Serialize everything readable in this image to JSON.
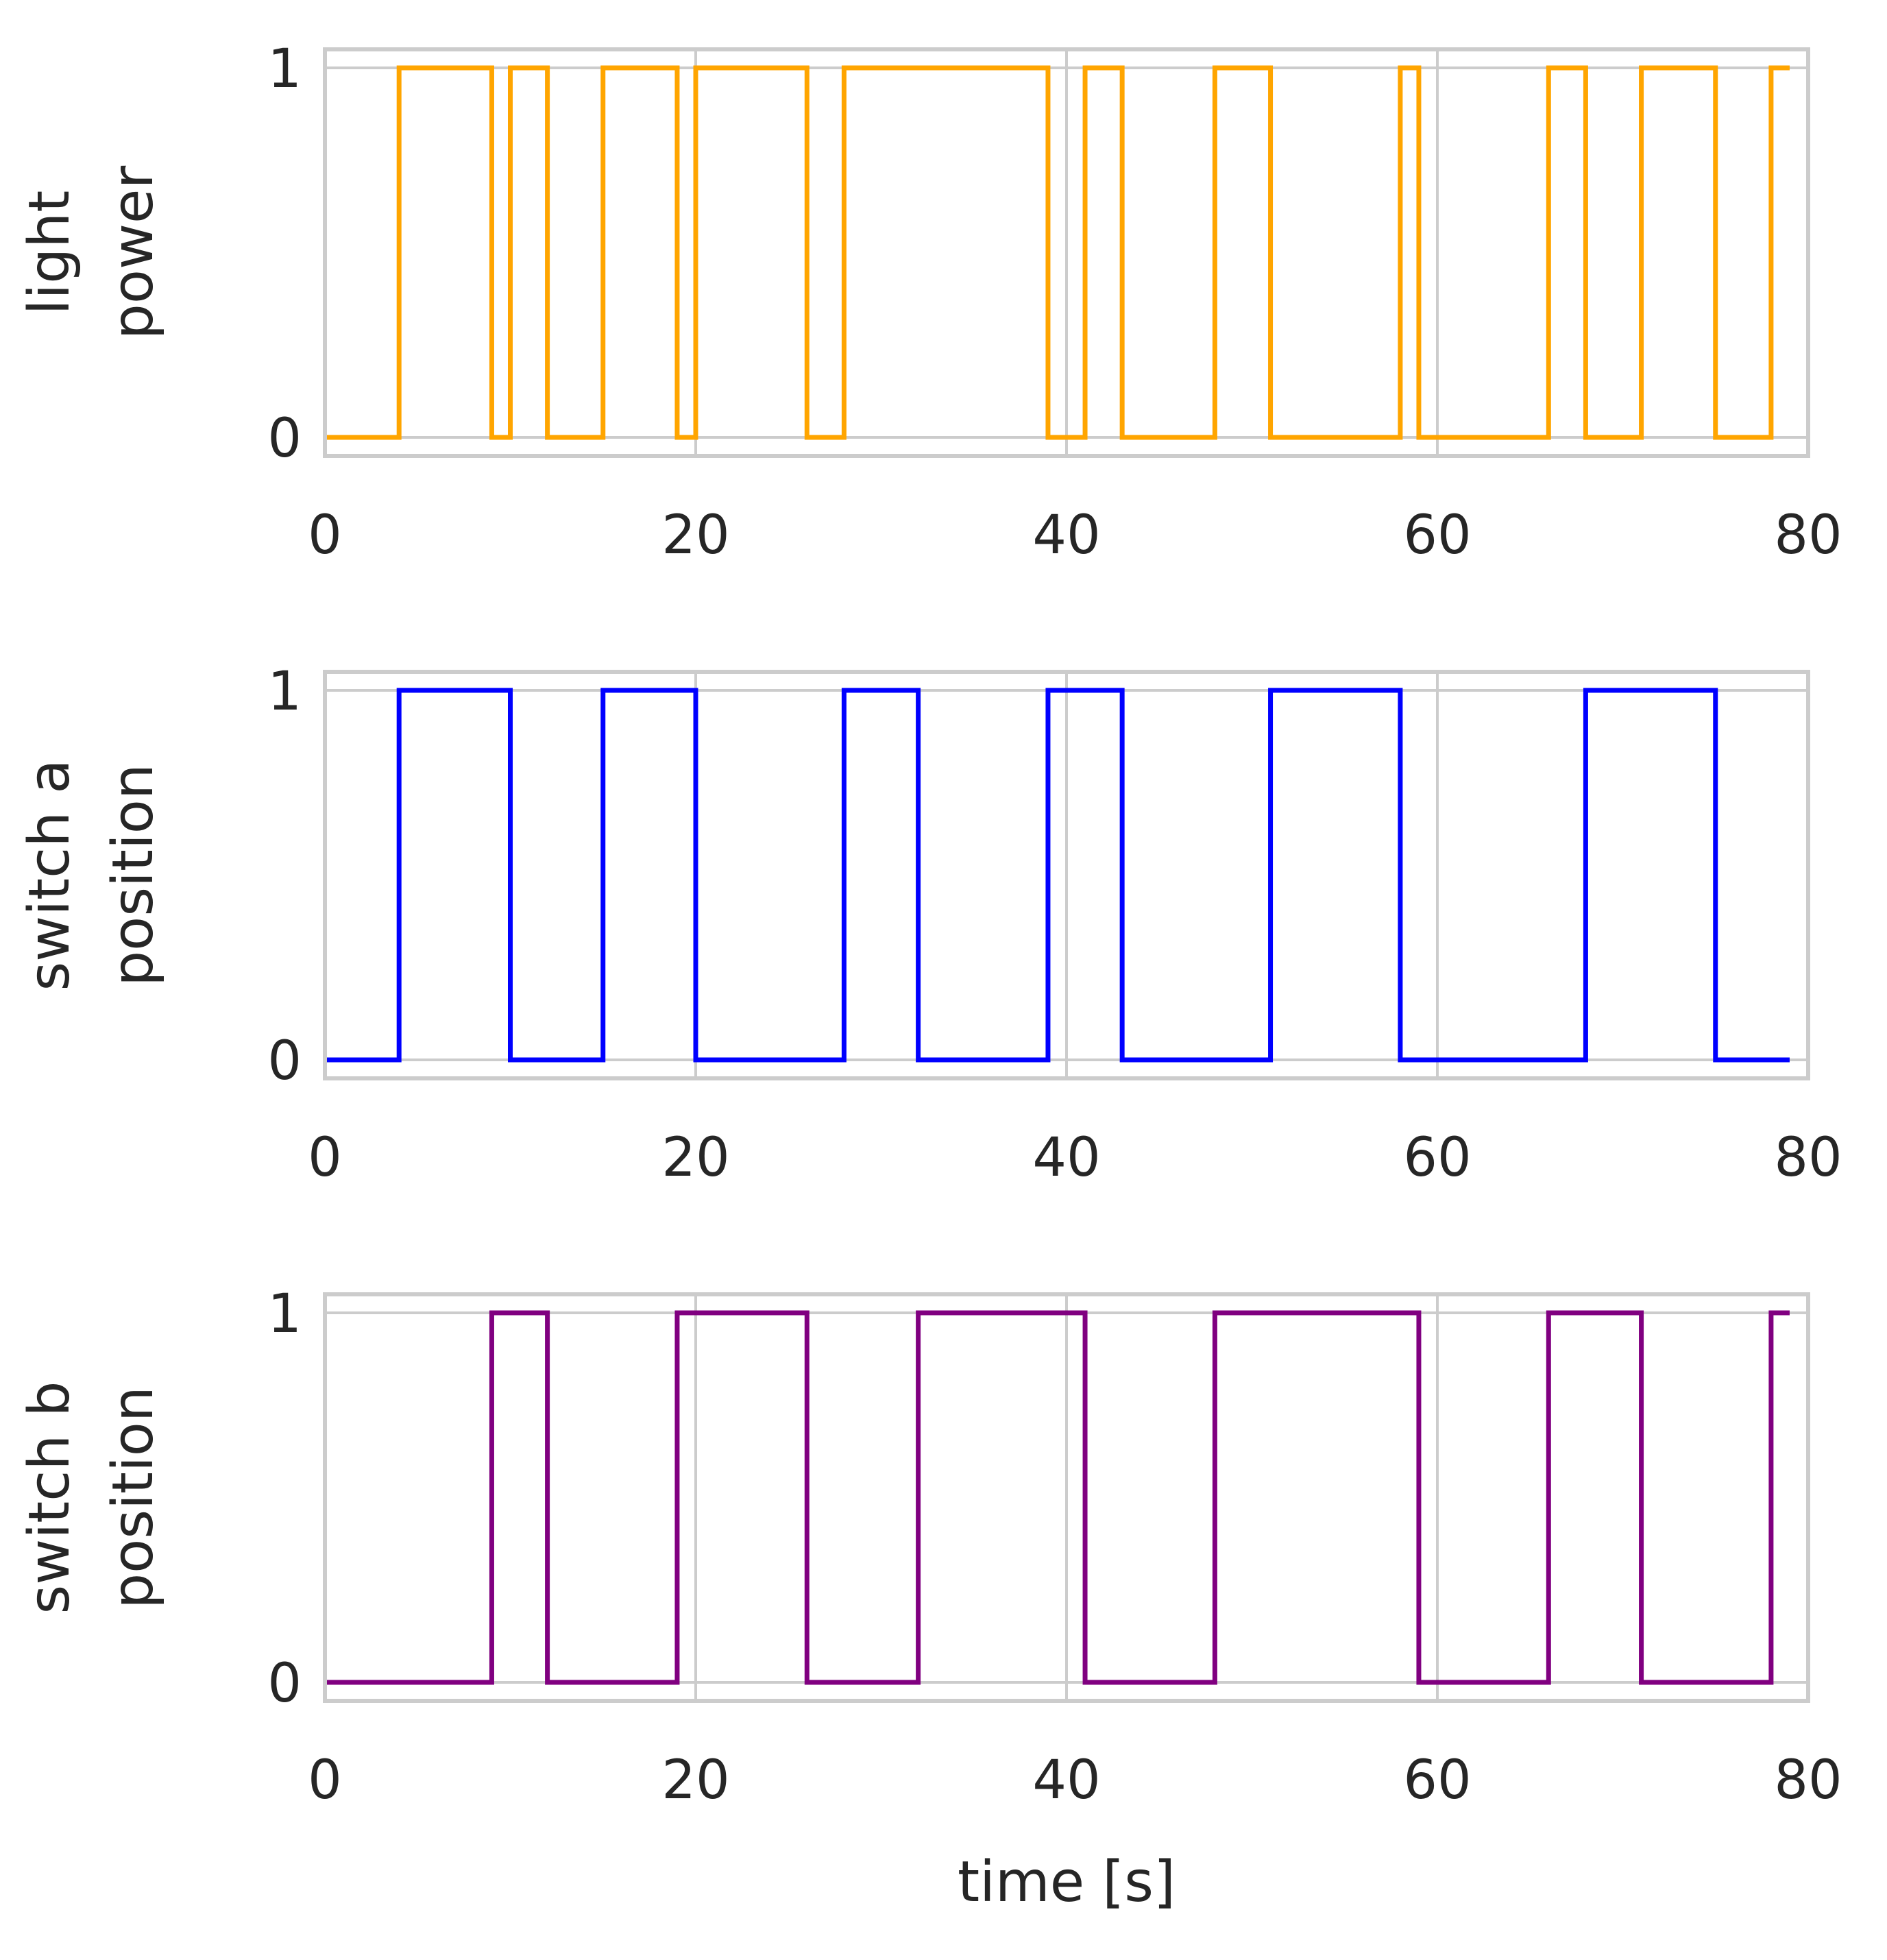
{
  "chart_data": [
    {
      "type": "line",
      "step": true,
      "ylabel_lines": [
        "light",
        "power"
      ],
      "xlim": [
        0,
        80
      ],
      "ylim": [
        -0.05,
        1.05
      ],
      "xticks": [
        0,
        20,
        40,
        60,
        80
      ],
      "yticks": [
        0,
        1
      ],
      "xlabel": "",
      "grid": true,
      "series": [
        {
          "color": "#FFA500",
          "x": [
            0,
            4,
            9,
            10,
            12,
            15,
            19,
            20,
            26,
            28,
            39,
            41,
            43,
            48,
            51,
            58,
            59,
            66,
            68,
            71,
            75,
            78,
            79
          ],
          "y": [
            0,
            1,
            0,
            1,
            0,
            1,
            0,
            1,
            0,
            1,
            0,
            1,
            0,
            1,
            0,
            1,
            0,
            1,
            0,
            1,
            0,
            1,
            1
          ]
        }
      ]
    },
    {
      "type": "line",
      "step": true,
      "ylabel_lines": [
        "switch a",
        "position"
      ],
      "xlim": [
        0,
        80
      ],
      "ylim": [
        -0.05,
        1.05
      ],
      "xticks": [
        0,
        20,
        40,
        60,
        80
      ],
      "yticks": [
        0,
        1
      ],
      "xlabel": "",
      "grid": true,
      "series": [
        {
          "color": "#0000FF",
          "x": [
            0,
            4,
            10,
            15,
            20,
            28,
            32,
            39,
            43,
            51,
            58,
            68,
            75,
            79
          ],
          "y": [
            0,
            1,
            0,
            1,
            0,
            1,
            0,
            1,
            0,
            1,
            0,
            1,
            0,
            0
          ]
        }
      ]
    },
    {
      "type": "line",
      "step": true,
      "ylabel_lines": [
        "switch b",
        "position"
      ],
      "xlim": [
        0,
        80
      ],
      "ylim": [
        -0.05,
        1.05
      ],
      "xticks": [
        0,
        20,
        40,
        60,
        80
      ],
      "yticks": [
        0,
        1
      ],
      "xlabel": "time [s]",
      "grid": true,
      "series": [
        {
          "color": "#800080",
          "x": [
            0,
            9,
            12,
            19,
            26,
            32,
            41,
            48,
            59,
            66,
            71,
            78,
            79
          ],
          "y": [
            0,
            1,
            0,
            1,
            0,
            1,
            0,
            1,
            0,
            1,
            0,
            1,
            1
          ]
        }
      ]
    }
  ]
}
